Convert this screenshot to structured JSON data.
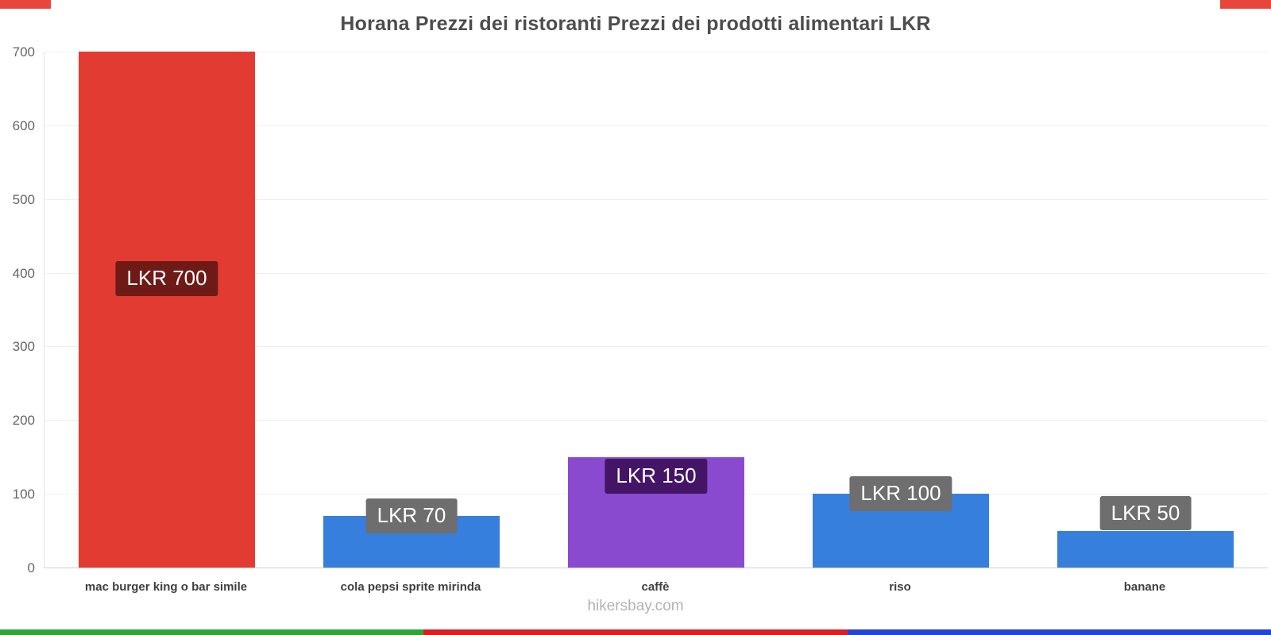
{
  "title": "Horana Prezzi dei ristoranti Prezzi dei prodotti alimentari LKR",
  "footer": "hikersbay.com",
  "decorations": {
    "corner_color": "#e8453c",
    "bottom_stripe_colors": [
      "#30a43a",
      "#d81f26",
      "#2544cf"
    ]
  },
  "chart_data": {
    "type": "bar",
    "title": "Horana Prezzi dei ristoranti Prezzi dei prodotti alimentari LKR",
    "categories": [
      "mac burger king o bar simile",
      "cola pepsi sprite mirinda",
      "caffè",
      "riso",
      "banane"
    ],
    "values": [
      700,
      70,
      150,
      100,
      50
    ],
    "value_labels": [
      "LKR 700",
      "LKR 70",
      "LKR 150",
      "LKR 100",
      "LKR 50"
    ],
    "bar_colors": [
      "#e23b32",
      "#377fdc",
      "#8a4ad0",
      "#377fdc",
      "#377fdc"
    ],
    "label_bg_colors": [
      "#6e1b17",
      "#6e6e6e",
      "#441566",
      "#6e6e6e",
      "#6e6e6e"
    ],
    "label_position": [
      "middle",
      "top",
      "inside-top",
      "top",
      "above-top"
    ],
    "xlabel": "",
    "ylabel": "",
    "ylim": [
      0,
      700
    ],
    "yticks": [
      0,
      100,
      200,
      300,
      400,
      500,
      600,
      700
    ],
    "grid": "horizontal",
    "legend": "none",
    "currency": "LKR"
  }
}
